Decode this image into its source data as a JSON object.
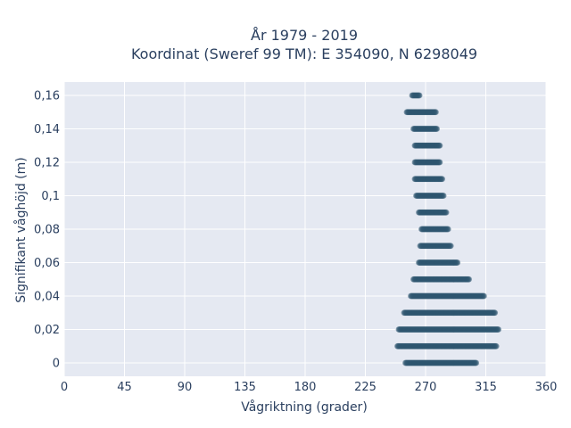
{
  "chart_data": {
    "type": "scatter",
    "title": "År 1979 - 2019",
    "subtitle": "Koordinat (Sweref 99 TM): E 354090, N 6298049",
    "xlabel": "Vågriktning (grader)",
    "ylabel": "Signifikant våghöjd (m)",
    "xlim": [
      0,
      360
    ],
    "ylim": [
      -0.008,
      0.168
    ],
    "xticks": [
      0,
      45,
      90,
      135,
      180,
      225,
      270,
      315,
      360
    ],
    "xtick_labels": [
      "0",
      "45",
      "90",
      "135",
      "180",
      "225",
      "270",
      "315",
      "360"
    ],
    "yticks": [
      0,
      0.02,
      0.04,
      0.06,
      0.08,
      0.1,
      0.12,
      0.14,
      0.16
    ],
    "ytick_labels": [
      "0",
      "0,02",
      "0,04",
      "0,06",
      "0,08",
      "0,1",
      "0,12",
      "0,14",
      "0,16"
    ],
    "grid": true,
    "marker_color": "#2e5570",
    "plot_bg": "#e5e9f2",
    "rows": [
      {
        "y": 0,
        "x_min": 255,
        "x_max": 308
      },
      {
        "y": 0.01,
        "x_min": 249,
        "x_max": 323
      },
      {
        "y": 0.02,
        "x_min": 250,
        "x_max": 325
      },
      {
        "y": 0.03,
        "x_min": 254,
        "x_max": 322
      },
      {
        "y": 0.04,
        "x_min": 259,
        "x_max": 314
      },
      {
        "y": 0.05,
        "x_min": 261,
        "x_max": 303
      },
      {
        "y": 0.06,
        "x_min": 265,
        "x_max": 294
      },
      {
        "y": 0.07,
        "x_min": 266,
        "x_max": 289
      },
      {
        "y": 0.08,
        "x_min": 267,
        "x_max": 287
      },
      {
        "y": 0.09,
        "x_min": 265,
        "x_max": 286
      },
      {
        "y": 0.1,
        "x_min": 263,
        "x_max": 284
      },
      {
        "y": 0.11,
        "x_min": 262,
        "x_max": 283
      },
      {
        "y": 0.12,
        "x_min": 262,
        "x_max": 281
      },
      {
        "y": 0.13,
        "x_min": 262,
        "x_max": 281
      },
      {
        "y": 0.14,
        "x_min": 261,
        "x_max": 279
      },
      {
        "y": 0.15,
        "x_min": 256,
        "x_max": 278
      },
      {
        "y": 0.16,
        "x_min": 260,
        "x_max": 266
      }
    ]
  }
}
